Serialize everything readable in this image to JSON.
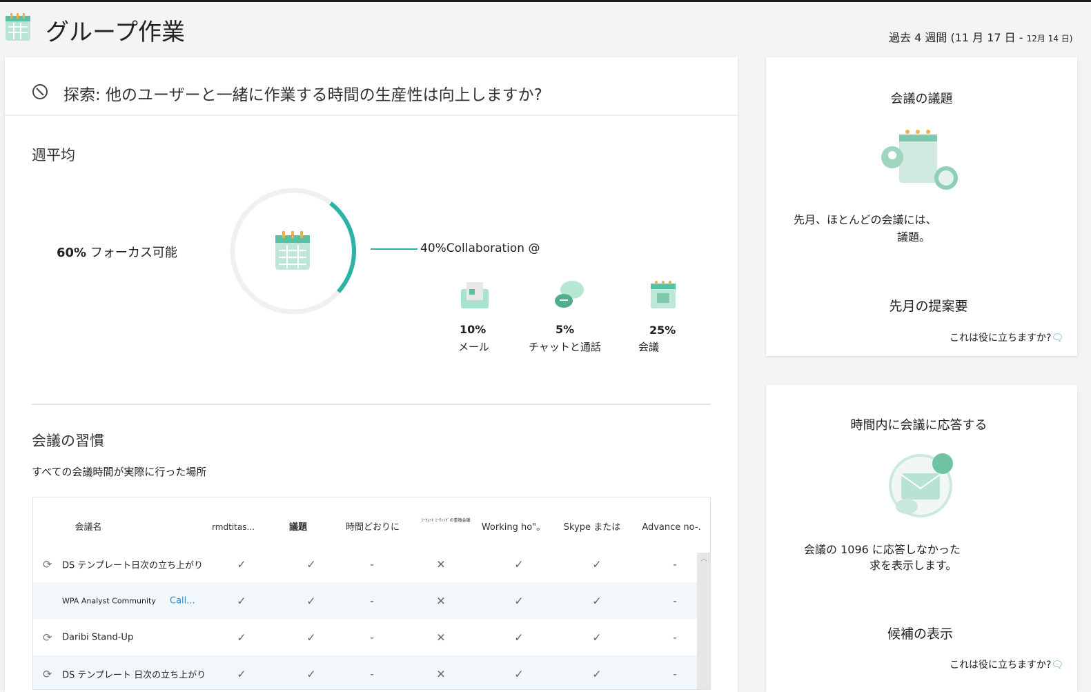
{
  "header": {
    "title": "グループ作業",
    "date_range_prefix": "過去 4 週間 (11 月 17 日 - ",
    "date_range_end": "12月 14 日)",
    "calendar_icon": "calendar-icon"
  },
  "main": {
    "question": "探索: 他のユーザーと一緒に作業する時間の生産性は向上しますか?",
    "weekly_avg": {
      "title": "週平均",
      "focus_pct": "60%",
      "focus_label": "フォーカス可能",
      "collab_label": "40%Collaboration @",
      "collab_fraction": 0.4,
      "accent": "#2db3a6",
      "breakdown": [
        {
          "pct": "10%",
          "label": "メール",
          "icon": "mail-icon"
        },
        {
          "pct": "5%",
          "label": "チャットと通話",
          "icon": "chat-icon"
        },
        {
          "pct": "25%",
          "label": "会議",
          "icon": "calendar-icon"
        }
      ]
    },
    "habits": {
      "title": "会議の習慣",
      "subtitle": "すべての会議時間が実際に行った場所",
      "columns": [
        "会議名",
        "rmdtitas...",
        "議題",
        "時間どおりに",
        "ｼｰｸﾚｯﾄ ﾐｰﾃｨﾝｸﾞの重複会議",
        "Working ho\"。",
        "Skype または",
        "Advance no-."
      ],
      "rows": [
        {
          "name": "DS テンプレート日次の立ち上がり",
          "recurring": true,
          "link": "",
          "cells": [
            "✓",
            "✓",
            "-",
            "✕",
            "✓",
            "✓",
            "-"
          ]
        },
        {
          "name": "WPA Analyst Community",
          "recurring": false,
          "link": "Call...",
          "cells": [
            "✓",
            "✓",
            "-",
            "✕",
            "✓",
            "✓",
            "-"
          ]
        },
        {
          "name": "Daribi Stand-Up",
          "recurring": true,
          "link": "",
          "cells": [
            "✓",
            "✓",
            "-",
            "✕",
            "✓",
            "✓",
            "-"
          ]
        },
        {
          "name": "DS テンプレート 日次の立ち上がり",
          "recurring": true,
          "link": "",
          "cells": [
            "✓",
            "✓",
            "-",
            "✕",
            "✓",
            "✓",
            "-"
          ]
        }
      ]
    }
  },
  "side": [
    {
      "title": "会議の議題",
      "text1": "先月、ほとんどの会議には、",
      "text2": "議題。",
      "action": "先月の提案要",
      "help": "これは役に立ちますか?"
    },
    {
      "title": "時間内に会議に応答する",
      "text1": "会議の 1096 に応答しなかった",
      "text2": "求を表示します。",
      "action": "候補の表示",
      "help": "これは役に立ちますか?"
    }
  ]
}
